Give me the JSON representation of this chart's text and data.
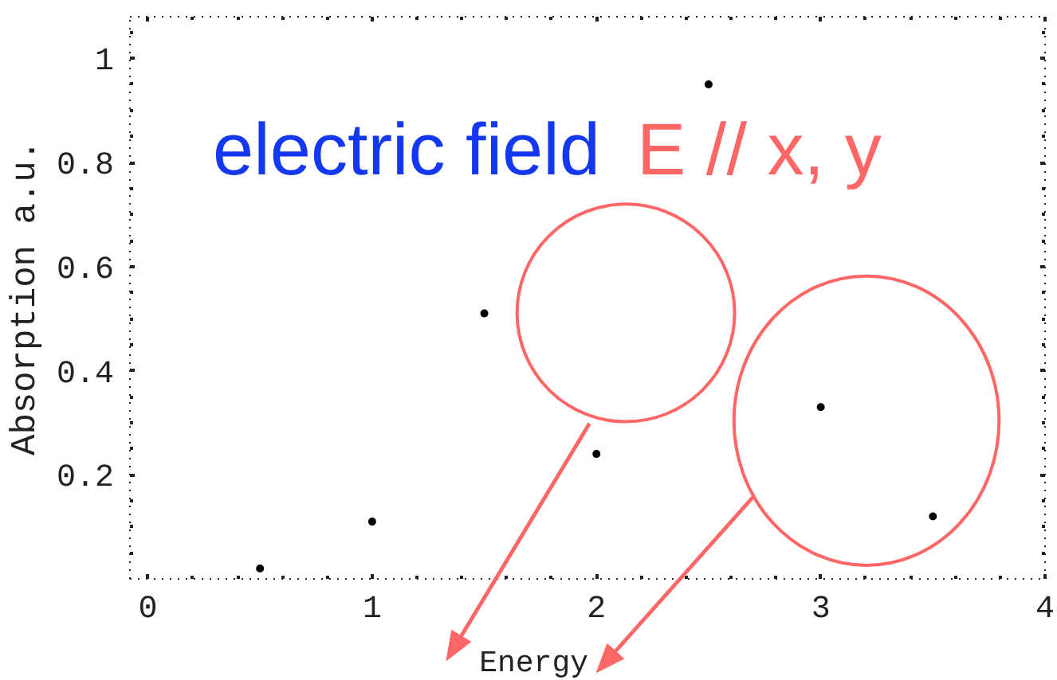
{
  "chart_data": {
    "type": "scatter",
    "xlabel": "Energy",
    "ylabel": "Absorption a.u.",
    "annotations": [
      "electric field",
      "E // x, y"
    ],
    "x": [
      0.5,
      1,
      1.5,
      2,
      2.5,
      3,
      3.5
    ],
    "series": [
      {
        "color": "#000000",
        "values": [
          0.02,
          0.11,
          0.51,
          0.24,
          0.95,
          0.33,
          0.12
        ]
      }
    ],
    "marker": "circle",
    "xlim": [
      -0.08,
      4
    ],
    "ylim": [
      0,
      1.08
    ],
    "xticks": [
      0,
      {
        "value": 0.2,
        "label": null
      },
      {
        "value": 0.4,
        "label": null
      },
      {
        "value": 0.6,
        "label": null
      },
      {
        "value": 0.8,
        "label": null
      },
      1,
      {
        "value": 1.2,
        "label": null
      },
      {
        "value": 1.4,
        "label": null
      },
      {
        "value": 1.6,
        "label": null
      },
      {
        "value": 1.8,
        "label": null
      },
      2,
      {
        "value": 2.2,
        "label": null
      },
      {
        "value": 2.4,
        "label": null
      },
      {
        "value": 2.6,
        "label": null
      },
      {
        "value": 2.8,
        "label": null
      },
      3,
      {
        "value": 3.2,
        "label": null
      },
      {
        "value": 3.4,
        "label": null
      },
      {
        "value": 3.6,
        "label": null
      },
      {
        "value": 3.8,
        "label": null
      },
      4
    ],
    "yticks": [
      {
        "value": 0.05,
        "label": null
      },
      {
        "value": 0.1,
        "label": null
      },
      {
        "value": 0.15,
        "label": null
      },
      0.2,
      {
        "value": 0.25,
        "label": null
      },
      {
        "value": 0.3,
        "label": null
      },
      {
        "value": 0.35,
        "label": null
      },
      0.4,
      {
        "value": 0.45,
        "label": null
      },
      {
        "value": 0.5,
        "label": null
      },
      {
        "value": 0.55,
        "label": null
      },
      0.6,
      {
        "value": 0.65,
        "label": null
      },
      {
        "value": 0.7,
        "label": null
      },
      {
        "value": 0.75,
        "label": null
      },
      0.8,
      {
        "value": 0.85,
        "label": null
      },
      {
        "value": 0.9,
        "label": null
      },
      {
        "value": 0.95,
        "label": null
      },
      1,
      {
        "value": 1.05,
        "label": null
      }
    ]
  }
}
